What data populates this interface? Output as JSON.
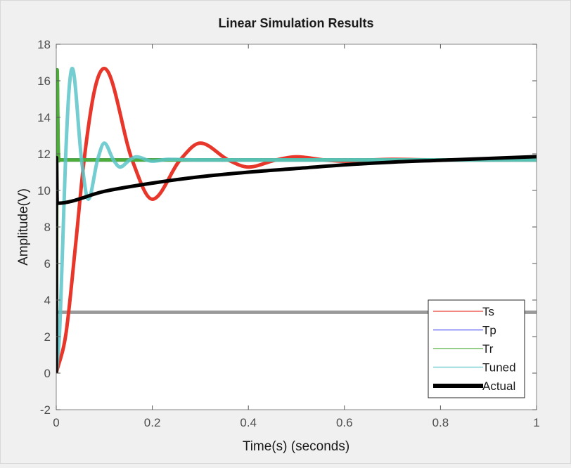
{
  "chart_data": {
    "type": "line",
    "title": "Linear Simulation Results",
    "xlabel": "Time(s) (seconds)",
    "ylabel": "Amplitude(V)",
    "xlim": [
      0,
      1
    ],
    "ylim": [
      -2,
      18
    ],
    "xticks": [
      0,
      0.2,
      0.4,
      0.6,
      0.8,
      1
    ],
    "xtick_labels": [
      "0",
      "0.2",
      "0.4",
      "0.6",
      "0.8",
      "1"
    ],
    "yticks": [
      -2,
      0,
      2,
      4,
      6,
      8,
      10,
      12,
      14,
      16,
      18
    ],
    "ytick_labels": [
      "-2",
      "0",
      "2",
      "4",
      "6",
      "8",
      "10",
      "12",
      "14",
      "16",
      "18"
    ],
    "grid": false,
    "legend_position": "bottom-right",
    "series": [
      {
        "key": "input",
        "color": "#9a9a9a",
        "x": [
          0,
          1
        ],
        "y": [
          3.33,
          3.33
        ]
      },
      {
        "name": "Ts",
        "color": "#e8362a",
        "x": [
          0,
          0.02,
          0.04,
          0.058,
          0.08,
          0.1,
          0.158,
          0.2,
          0.258,
          0.3,
          0.358,
          0.4,
          0.458,
          0.5,
          0.558,
          0.6,
          0.658,
          0.7,
          0.8,
          1
        ],
        "y": [
          0,
          2.13,
          6.96,
          11.67,
          15.52,
          16.68,
          11.67,
          9.52,
          11.67,
          12.59,
          11.67,
          11.28,
          11.67,
          11.84,
          11.67,
          11.6,
          11.67,
          11.7,
          11.67,
          11.67
        ]
      },
      {
        "name": "Tp",
        "color": "#4d4df2",
        "x": [
          0,
          0.0015,
          0.004,
          0.006,
          1
        ],
        "y": [
          0,
          16.5,
          12.3,
          11.67,
          11.67
        ]
      },
      {
        "name": "Tr",
        "color": "#4ead3a",
        "x": [
          0,
          0.002,
          0.004,
          0.007,
          1
        ],
        "y": [
          0,
          16.6,
          12.5,
          11.67,
          11.67
        ]
      },
      {
        "name": "Tuned",
        "color": "#5cc4c8",
        "x": [
          0,
          0.0067,
          0.0133,
          0.0193,
          0.0267,
          0.0333,
          0.0527,
          0.0667,
          0.086,
          0.1,
          0.119,
          0.133,
          0.153,
          0.167,
          0.2,
          0.233,
          0.3,
          1
        ],
        "y": [
          0,
          2.13,
          6.96,
          11.67,
          15.52,
          16.68,
          11.67,
          9.52,
          11.67,
          12.59,
          11.67,
          11.28,
          11.67,
          11.84,
          11.6,
          11.7,
          11.67,
          11.67
        ]
      },
      {
        "name": "Actual",
        "color": "#000000",
        "x": [
          0,
          0.0005,
          0.002,
          0.1,
          0.2,
          0.3,
          0.4,
          0.5,
          0.6,
          0.7,
          0.8,
          0.9,
          1
        ],
        "y": [
          0,
          11.8,
          9.3,
          9.95,
          10.4,
          10.75,
          11.0,
          11.2,
          11.4,
          11.55,
          11.65,
          11.75,
          11.85
        ]
      }
    ]
  }
}
